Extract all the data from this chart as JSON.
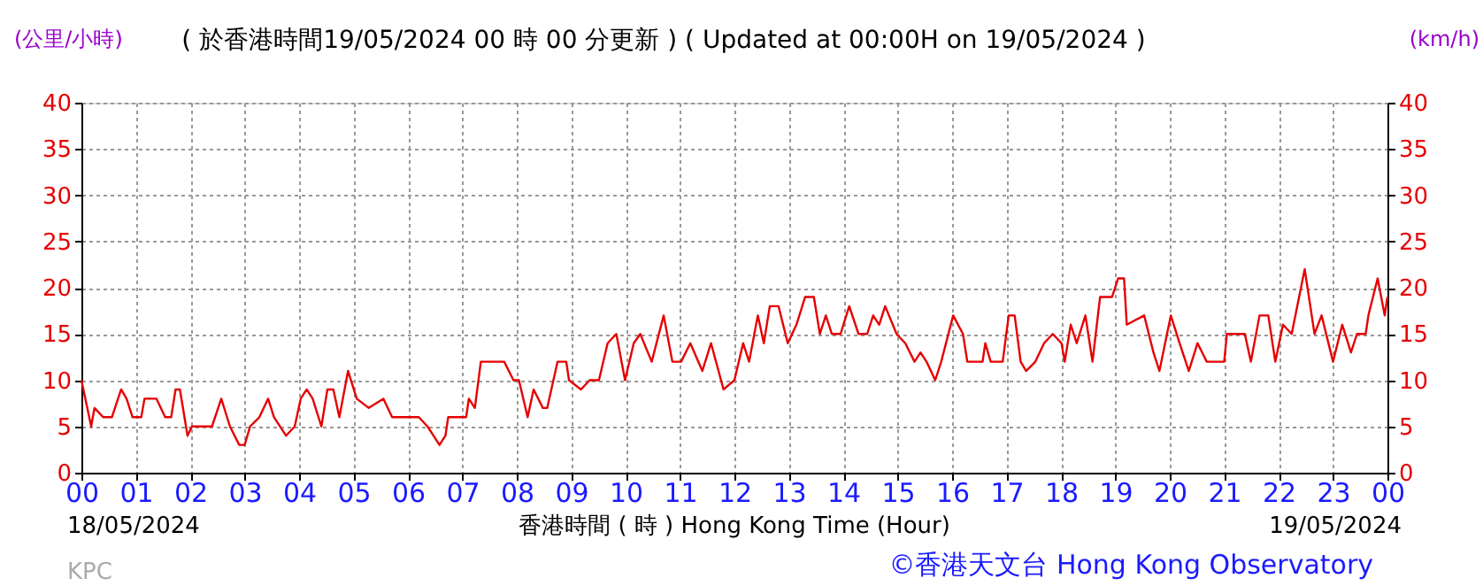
{
  "chart_data": {
    "type": "line",
    "title": "( 於香港時間19/05/2024 00 時 00 分更新 ) ( Updated at 00:00H on 19/05/2024 )",
    "xlabel": "香港時間 ( 時 )  Hong Kong Time (Hour)",
    "ylabel": "(公里/小時)",
    "y2label": "(km/h)",
    "annotations": [
      "18/05/2024",
      "19/05/2024",
      "KPC",
      "©香港天文台 Hong Kong Observatory"
    ],
    "x": [
      0,
      0.18,
      0.24,
      0.4,
      0.56,
      0.73,
      0.83,
      0.94,
      1.1,
      1.16,
      1.38,
      1.54,
      1.65,
      1.73,
      1.81,
      1.95,
      2.03,
      2.4,
      2.57,
      2.73,
      2.9,
      3.0,
      3.1,
      3.27,
      3.43,
      3.54,
      3.76,
      3.92,
      4.03,
      4.14,
      4.25,
      4.41,
      4.52,
      4.63,
      4.74,
      4.9,
      5.06,
      5.28,
      5.55,
      5.71,
      5.98,
      6.2,
      6.36,
      6.47,
      6.58,
      6.69,
      6.74,
      7.07,
      7.12,
      7.23,
      7.34,
      7.77,
      7.94,
      8.04,
      8.2,
      8.31,
      8.48,
      8.56,
      8.75,
      8.91,
      8.96,
      9.18,
      9.34,
      9.51,
      9.67,
      9.83,
      9.99,
      10.15,
      10.27,
      10.48,
      10.7,
      10.86,
      11.02,
      11.19,
      11.41,
      11.57,
      11.8,
      12.0,
      12.16,
      12.27,
      12.43,
      12.54,
      12.65,
      12.81,
      12.98,
      13.14,
      13.3,
      13.46,
      13.57,
      13.68,
      13.79,
      13.95,
      14.11,
      14.28,
      14.44,
      14.55,
      14.66,
      14.77,
      14.98,
      15.14,
      15.31,
      15.42,
      15.53,
      15.69,
      15.8,
      16.02,
      16.2,
      16.28,
      16.56,
      16.61,
      16.71,
      16.93,
      17.04,
      17.15,
      17.26,
      17.36,
      17.53,
      17.69,
      17.85,
      18.01,
      18.07,
      18.18,
      18.29,
      18.45,
      18.58,
      18.72,
      18.94,
      19.05,
      19.16,
      19.21,
      19.53,
      19.7,
      19.81,
      20.02,
      20.18,
      20.35,
      20.51,
      20.68,
      21.0,
      21.05,
      21.38,
      21.49,
      21.65,
      21.81,
      21.94,
      22.08,
      22.24,
      22.48,
      22.66,
      22.79,
      23.0,
      23.17,
      23.33,
      23.44,
      23.6,
      23.65,
      23.82,
      23.95,
      24.0
    ],
    "series": [
      {
        "color": "#e60000",
        "values": [
          10,
          5,
          7,
          6,
          6,
          9,
          8,
          6,
          6,
          8,
          8,
          6,
          6,
          9,
          9,
          4,
          5,
          5,
          8,
          5,
          3,
          3,
          5,
          6,
          8,
          6,
          4,
          5,
          8,
          9,
          8,
          5,
          9,
          9,
          6,
          11,
          8,
          7,
          8,
          6,
          6,
          6,
          5,
          4,
          3,
          4,
          6,
          6,
          8,
          7,
          12,
          12,
          10,
          10,
          6,
          9,
          7,
          7,
          12,
          12,
          10,
          9,
          10,
          10,
          14,
          15,
          10,
          14,
          15,
          12,
          17,
          12,
          12,
          14,
          11,
          14,
          9,
          10,
          14,
          12,
          17,
          14,
          18,
          18,
          14,
          16,
          19,
          19,
          15,
          17,
          15,
          15,
          18,
          15,
          15,
          17,
          16,
          18,
          15,
          14,
          12,
          13,
          12,
          10,
          12,
          17,
          15,
          12,
          12,
          14,
          12,
          12,
          17,
          17,
          12,
          11,
          12,
          14,
          15,
          14,
          12,
          16,
          14,
          17,
          12,
          19,
          19,
          21,
          21,
          16,
          17,
          13,
          11,
          17,
          14,
          11,
          14,
          12,
          12,
          15,
          15,
          12,
          17,
          17,
          12,
          16,
          15,
          22,
          15,
          17,
          12,
          16,
          13,
          15,
          15,
          17,
          21,
          17,
          19
        ]
      }
    ],
    "xlim": [
      0,
      24
    ],
    "xticks": [
      {
        "value": 0,
        "label": "00"
      },
      {
        "value": 1,
        "label": "01"
      },
      {
        "value": 2,
        "label": "02"
      },
      {
        "value": 3,
        "label": "03"
      },
      {
        "value": 4,
        "label": "04"
      },
      {
        "value": 5,
        "label": "05"
      },
      {
        "value": 6,
        "label": "06"
      },
      {
        "value": 7,
        "label": "07"
      },
      {
        "value": 8,
        "label": "08"
      },
      {
        "value": 9,
        "label": "09"
      },
      {
        "value": 10,
        "label": "10"
      },
      {
        "value": 11,
        "label": "11"
      },
      {
        "value": 12,
        "label": "12"
      },
      {
        "value": 13,
        "label": "13"
      },
      {
        "value": 14,
        "label": "14"
      },
      {
        "value": 15,
        "label": "15"
      },
      {
        "value": 16,
        "label": "16"
      },
      {
        "value": 17,
        "label": "17"
      },
      {
        "value": 18,
        "label": "18"
      },
      {
        "value": 19,
        "label": "19"
      },
      {
        "value": 20,
        "label": "20"
      },
      {
        "value": 21,
        "label": "21"
      },
      {
        "value": 22,
        "label": "22"
      },
      {
        "value": 23,
        "label": "23"
      },
      {
        "value": 24,
        "label": "00"
      }
    ],
    "ylim": [
      0,
      40
    ],
    "yticks": [
      0,
      5,
      10,
      15,
      20,
      25,
      30,
      35,
      40
    ],
    "y2lim": [
      0,
      40
    ],
    "y2ticks": [
      0,
      5,
      10,
      15,
      20,
      25,
      30,
      35,
      40
    ],
    "grid": true,
    "marker": "none",
    "line_style": "solid"
  }
}
